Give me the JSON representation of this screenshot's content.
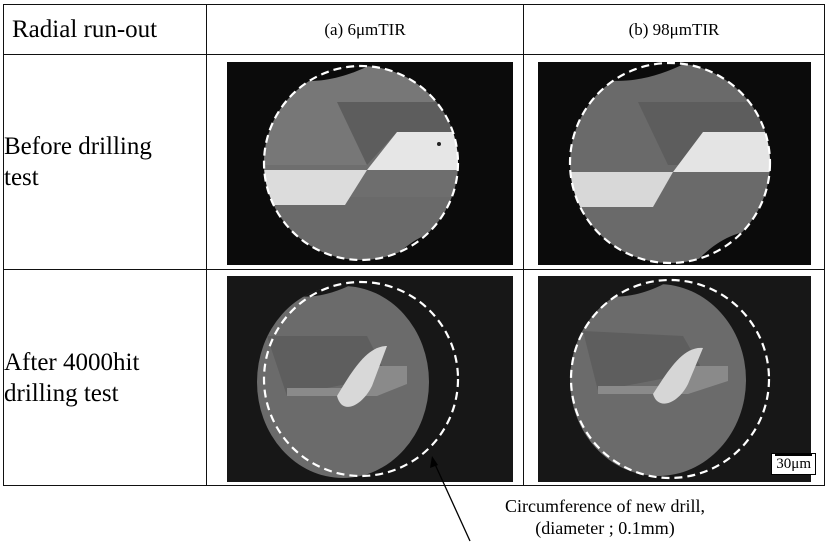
{
  "table": {
    "corner_label": "Radial run-out",
    "columns": [
      "(a) 6μmTIR",
      "(b) 98μmTIR"
    ],
    "rows": [
      {
        "label_line1": "Before drilling",
        "label_line2": "test"
      },
      {
        "label_line1": "After 4000hit",
        "label_line2": "drilling test"
      }
    ]
  },
  "scale_bar": "30μm",
  "callout": {
    "line1": "Circumference of new drill,",
    "line2": "(diameter ; 0.1mm)"
  }
}
